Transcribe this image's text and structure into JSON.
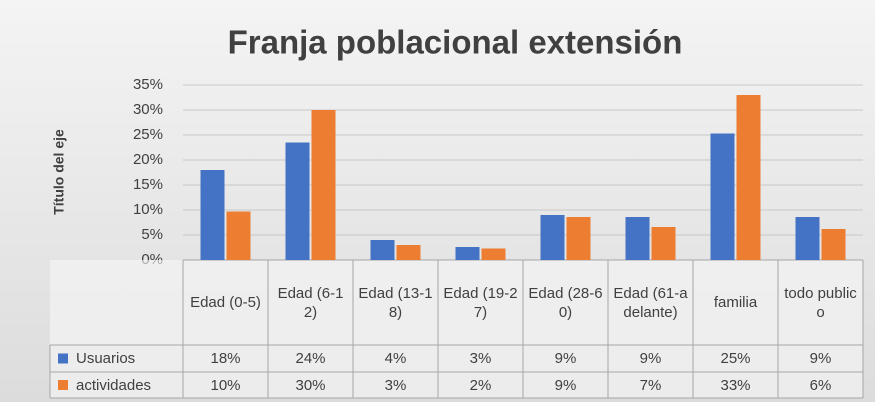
{
  "chart_data": {
    "type": "bar",
    "title": "Franja poblacional extensión",
    "y_axis_label": "Título del eje",
    "categories": [
      "Edad (0-5)",
      "Edad (6-12)",
      "Edad (13-18)",
      "Edad (19-27)",
      "Edad (28-60)",
      "Edad (61-adelante)",
      "familia",
      "todo publico"
    ],
    "series": [
      {
        "name": "Usuarios",
        "color": "#4472c4",
        "values": [
          18,
          23.5,
          4,
          2.6,
          9,
          8.6,
          25.3,
          8.6
        ],
        "value_labels": [
          "18%",
          "24%",
          "4%",
          "3%",
          "9%",
          "9%",
          "25%",
          "9%"
        ]
      },
      {
        "name": "actividades",
        "color": "#ed7d31",
        "values": [
          9.7,
          30,
          3,
          2.3,
          8.6,
          6.6,
          33,
          6.2
        ],
        "value_labels": [
          "10%",
          "30%",
          "3%",
          "2%",
          "9%",
          "7%",
          "33%",
          "6%"
        ]
      }
    ],
    "ylim": [
      0,
      35
    ],
    "yticks": [
      {
        "value": 0,
        "label": "0%"
      },
      {
        "value": 5,
        "label": "5%"
      },
      {
        "value": 10,
        "label": "10%"
      },
      {
        "value": 15,
        "label": "15%"
      },
      {
        "value": 20,
        "label": "20%"
      },
      {
        "value": 25,
        "label": "25%"
      },
      {
        "value": 30,
        "label": "30%"
      },
      {
        "value": 35,
        "label": "35%"
      }
    ],
    "grid": true
  }
}
